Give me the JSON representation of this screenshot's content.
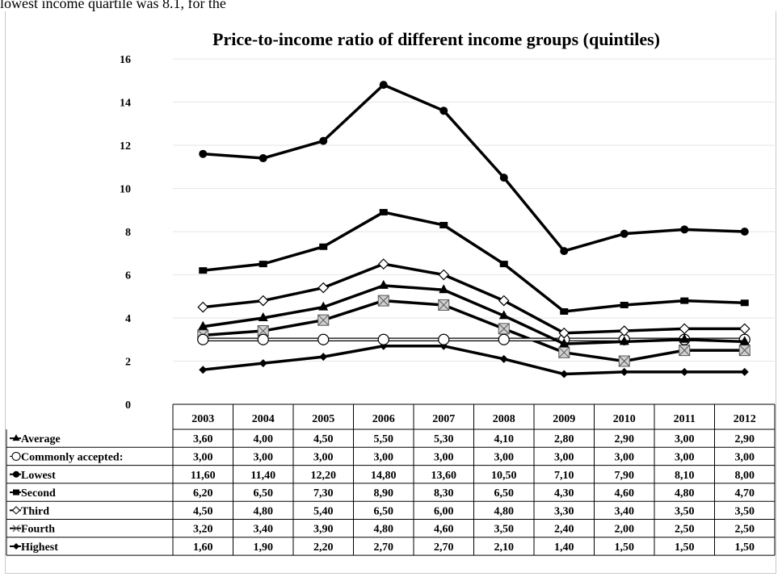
{
  "page_text": "lowest income quartile was 8.1, for the",
  "chart_data": {
    "type": "line",
    "title": "Price-to-income ratio of different income groups (quintiles)",
    "categories": [
      "2003",
      "2004",
      "2005",
      "2006",
      "2007",
      "2008",
      "2009",
      "2010",
      "2011",
      "2012"
    ],
    "ylim": [
      0,
      16
    ],
    "yticks": [
      0,
      2,
      4,
      6,
      8,
      10,
      12,
      14,
      16
    ],
    "grid": true,
    "legend": "data-table",
    "series": [
      {
        "name": "Average",
        "marker": "triangle",
        "values": [
          3.6,
          4.0,
          4.5,
          5.5,
          5.3,
          4.1,
          2.8,
          2.9,
          3.0,
          2.9
        ],
        "labels": [
          "3,60",
          "4,00",
          "4,50",
          "5,50",
          "5,30",
          "4,10",
          "2,80",
          "2,90",
          "3,00",
          "2,90"
        ]
      },
      {
        "name": "Commonly accepted:",
        "marker": "open-circle",
        "values": [
          3,
          3,
          3,
          3,
          3,
          3,
          3,
          3,
          3,
          3
        ],
        "labels": [
          "3,00",
          "3,00",
          "3,00",
          "3,00",
          "3,00",
          "3,00",
          "3,00",
          "3,00",
          "3,00",
          "3,00"
        ]
      },
      {
        "name": "Lowest",
        "marker": "circle",
        "values": [
          11.6,
          11.4,
          12.2,
          14.8,
          13.6,
          10.5,
          7.1,
          7.9,
          8.1,
          8.0
        ],
        "labels": [
          "11,60",
          "11,40",
          "12,20",
          "14,80",
          "13,60",
          "10,50",
          "7,10",
          "7,90",
          "8,10",
          "8,00"
        ]
      },
      {
        "name": "Second",
        "marker": "square",
        "values": [
          6.2,
          6.5,
          7.3,
          8.9,
          8.3,
          6.5,
          4.3,
          4.6,
          4.8,
          4.7
        ],
        "labels": [
          "6,20",
          "6,50",
          "7,30",
          "8,90",
          "8,30",
          "6,50",
          "4,30",
          "4,60",
          "4,80",
          "4,70"
        ]
      },
      {
        "name": "Third",
        "marker": "open-diamond",
        "values": [
          4.5,
          4.8,
          5.4,
          6.5,
          6.0,
          4.8,
          3.3,
          3.4,
          3.5,
          3.5
        ],
        "labels": [
          "4,50",
          "4,80",
          "5,40",
          "6,50",
          "6,00",
          "4,80",
          "3,30",
          "3,40",
          "3,50",
          "3,50"
        ]
      },
      {
        "name": "Fourth",
        "marker": "x-square",
        "values": [
          3.2,
          3.4,
          3.9,
          4.8,
          4.6,
          3.5,
          2.4,
          2.0,
          2.5,
          2.5
        ],
        "labels": [
          "3,20",
          "3,40",
          "3,90",
          "4,80",
          "4,60",
          "3,50",
          "2,40",
          "2,00",
          "2,50",
          "2,50"
        ]
      },
      {
        "name": "Highest",
        "marker": "diamond",
        "values": [
          1.6,
          1.9,
          2.2,
          2.7,
          2.7,
          2.1,
          1.4,
          1.5,
          1.5,
          1.5
        ],
        "labels": [
          "1,60",
          "1,90",
          "2,20",
          "2,70",
          "2,70",
          "2,10",
          "1,40",
          "1,50",
          "1,50",
          "1,50"
        ]
      }
    ]
  }
}
